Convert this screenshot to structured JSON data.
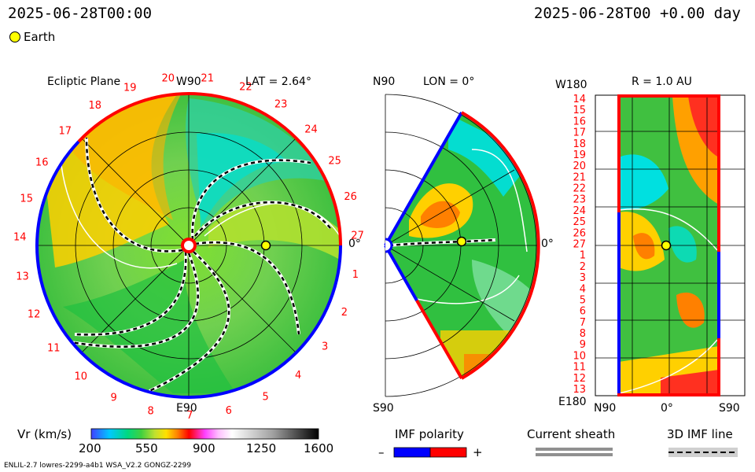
{
  "header": {
    "timestamp_left": "2025-06-28T00:00",
    "timestamp_right": "2025-06-28T00 +0.00 day",
    "earth_legend": "Earth"
  },
  "panels": {
    "ecliptic": {
      "title": "Ecliptic Plane",
      "top_label": "W90",
      "bottom_label": "E90",
      "right_label": "0°",
      "lat_label": "LAT = 2.64°",
      "carrington_numbers": [
        "20",
        "21",
        "22",
        "23",
        "24",
        "25",
        "26",
        "27",
        "1",
        "2",
        "3",
        "4",
        "5",
        "6",
        "7",
        "8",
        "9",
        "10",
        "11",
        "12",
        "13",
        "14",
        "15",
        "16",
        "17",
        "18",
        "19"
      ]
    },
    "meridional": {
      "top_label": "N90",
      "bottom_label": "S90",
      "right_label": "0°",
      "lon_label": "LON = 0°"
    },
    "radial": {
      "title": "R = 1.0 AU",
      "top_left_label": "W180",
      "bottom_left_label": "E180",
      "x_labels": [
        "N90",
        "0°",
        "S90"
      ],
      "rot_numbers": [
        "14",
        "15",
        "16",
        "17",
        "18",
        "19",
        "20",
        "21",
        "22",
        "23",
        "24",
        "25",
        "26",
        "27",
        "1",
        "2",
        "3",
        "4",
        "5",
        "6",
        "7",
        "8",
        "9",
        "10",
        "11",
        "12",
        "13"
      ]
    }
  },
  "colorbar": {
    "label": "Vr (km/s)",
    "ticks": [
      "200",
      "550",
      "900",
      "1250",
      "1600"
    ]
  },
  "imf_legend": {
    "title": "IMF polarity",
    "minus": "–",
    "plus": "+",
    "colors": {
      "negative": "#0000ff",
      "positive": "#ff0000"
    }
  },
  "sheath_legend": {
    "title": "Current sheath"
  },
  "imf_line_legend": {
    "title": "3D IMF line"
  },
  "footer": {
    "model_info": "ENLIL-2.7 lowres-2299-a4b1 WSA_V2.2 GONGZ-2299"
  },
  "chart_data": [
    {
      "type": "heatmap",
      "title": "Ecliptic Plane",
      "subtitle": "LAT = 2.64°",
      "quantity": "Vr (km/s)",
      "colorbar_range": [
        200,
        1600
      ],
      "colorbar_ticks": [
        200,
        550,
        900,
        1250,
        1600
      ],
      "colormap": [
        "#1010ff",
        "#00c8ff",
        "#00d080",
        "#40d040",
        "#c0e030",
        "#ffe000",
        "#ff8000",
        "#ff0000",
        "#ff40ff",
        "#ffffff",
        "#c0c0c0",
        "#000000"
      ],
      "markers": [
        {
          "name": "Earth",
          "color": "#ffff00"
        }
      ]
    },
    {
      "type": "heatmap",
      "title": "LON = 0°",
      "y_extent": [
        "N90",
        "S90"
      ]
    },
    {
      "type": "heatmap",
      "title": "R = 1.0 AU",
      "x_labels": [
        "N90",
        "0°",
        "S90"
      ],
      "y_extent": [
        "W180",
        "E180"
      ]
    }
  ]
}
